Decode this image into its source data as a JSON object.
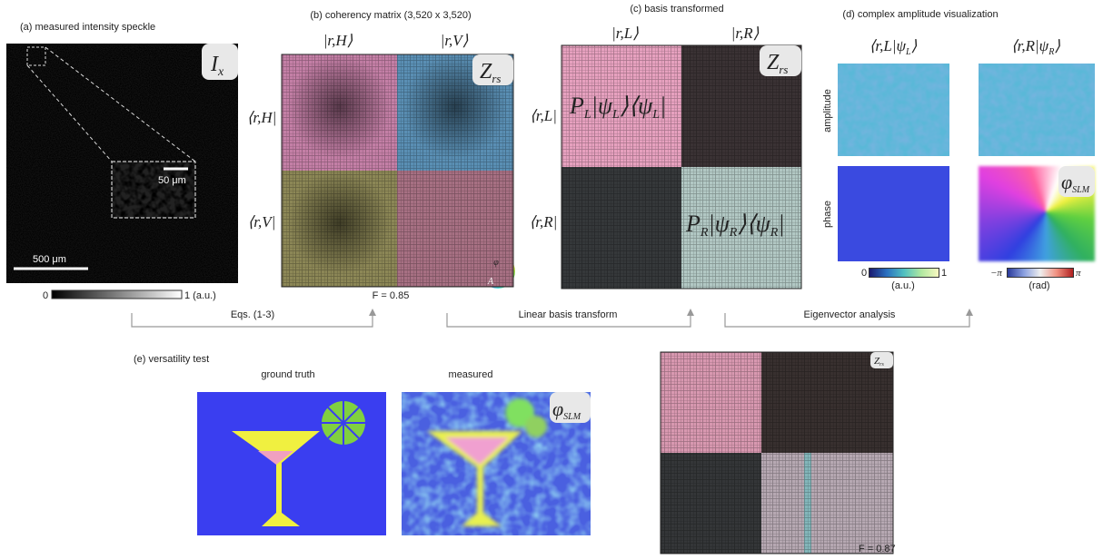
{
  "panel_a": {
    "title": "(a) measured intensity speckle",
    "image_label": {
      "main": "I",
      "sub": "x"
    },
    "inset_scale": "50 μm",
    "scale": "500 μm",
    "colorbar_min": "0",
    "colorbar_max": "1 (a.u.)"
  },
  "panel_b": {
    "title": "(b) coherency matrix (3,520 x 3,520)",
    "columns": [
      "|r,H⟩",
      "|r,V⟩"
    ],
    "rows": [
      "⟨r,H|",
      "⟨r,V|"
    ],
    "matrix_label": {
      "main": "Z",
      "sub": "rs"
    },
    "fidelity": "F = 0.85",
    "wheel_phase": "φ",
    "wheel_amplitude": "A"
  },
  "panel_c": {
    "title": "(c) basis transformed",
    "columns": [
      "|r,L⟩",
      "|r,R⟩"
    ],
    "rows": [
      "⟨r,L|",
      "⟨r,R|"
    ],
    "matrix_label": {
      "main": "Z",
      "sub": "rs"
    },
    "operator_L": [
      "P",
      "L",
      "|ψ",
      "L",
      "⟩⟨ψ",
      "L",
      "|"
    ],
    "operator_R": [
      "P",
      "R",
      "|ψ",
      "R",
      "⟩⟨ψ",
      "R",
      "|"
    ]
  },
  "panel_d": {
    "title": "(d) complex amplitude visualization",
    "columns": [
      [
        "⟨r,L|ψ",
        "L",
        "⟩"
      ],
      [
        "⟨r,R|ψ",
        "R",
        "⟩"
      ]
    ],
    "rows": [
      "amplitude",
      "phase"
    ],
    "phase_label": {
      "main": "φ",
      "sub": "SLM"
    },
    "amp_min": "0",
    "amp_max": "1",
    "amp_unit": "(a.u.)",
    "phase_min": "−π",
    "phase_max": "π",
    "phase_unit": "(rad)"
  },
  "steps": [
    "Eqs. (1-3)",
    "Linear basis transform",
    "Eigenvector analysis"
  ],
  "panel_e": {
    "title": "(e) versatility test",
    "ground_truth": "ground truth",
    "measured": "measured",
    "phase_label": {
      "main": "φ",
      "sub": "SLM"
    },
    "matrix_label": {
      "main": "Z",
      "sub": "rs"
    },
    "fidelity": "F = 0.87"
  }
}
